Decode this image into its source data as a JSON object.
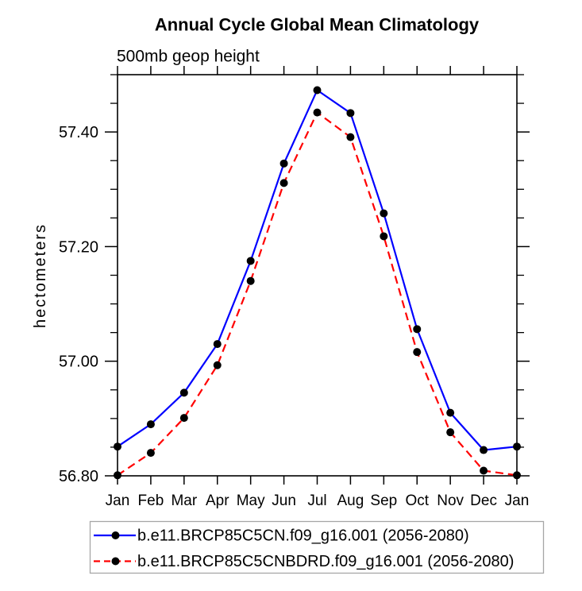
{
  "chart_data": {
    "type": "line",
    "title": "Annual Cycle Global Mean Climatology",
    "subtitle": "500mb geop height",
    "ylabel": "hectometers",
    "categories": [
      "Jan",
      "Feb",
      "Mar",
      "Apr",
      "May",
      "Jun",
      "Jul",
      "Aug",
      "Sep",
      "Oct",
      "Nov",
      "Dec",
      "Jan"
    ],
    "ylim": [
      56.8,
      57.5
    ],
    "y_major_ticks": [
      56.8,
      57.0,
      57.2,
      57.4
    ],
    "y_tick_labels": [
      "56.80",
      "57.00",
      "57.20",
      "57.40"
    ],
    "y_minor_step": 0.05,
    "grid": false,
    "legend_position": "bottom",
    "series": [
      {
        "name": "b.e11.BRCP85C5CN.f09_g16.001 (2056-2080)",
        "color": "#0000ff",
        "style": "solid",
        "marker": "circle",
        "marker_color": "#000000",
        "values": [
          56.851,
          56.89,
          56.945,
          57.03,
          57.175,
          57.345,
          57.473,
          57.433,
          57.258,
          57.056,
          56.91,
          56.845,
          56.851
        ]
      },
      {
        "name": "b.e11.BRCP85C5CNBDRD.f09_g16.001 (2056-2080)",
        "color": "#ff0000",
        "style": "dashed",
        "marker": "circle",
        "marker_color": "#000000",
        "values": [
          56.801,
          56.84,
          56.901,
          56.993,
          57.14,
          57.311,
          57.434,
          57.391,
          57.218,
          57.016,
          56.876,
          56.809,
          56.801
        ]
      }
    ]
  },
  "colors": {
    "axis": "#000000",
    "text": "#000000",
    "series_blue": "#0000ff",
    "series_red": "#ff0000",
    "marker": "#000000",
    "legend_border": "#a6a6a6",
    "background": "#ffffff"
  }
}
